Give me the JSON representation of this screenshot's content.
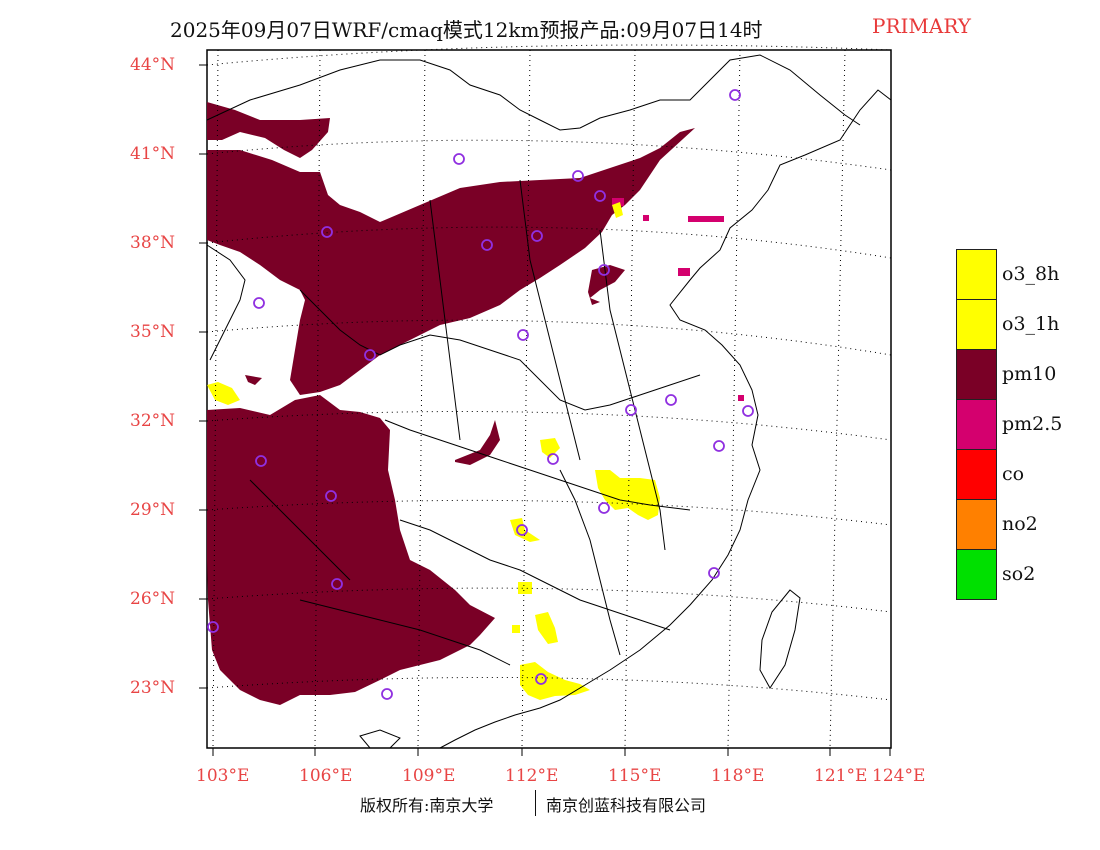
{
  "header": {
    "title": "2025年09月07日WRF/cmaq模式12km预报产品:09月07日14时",
    "primary_label": "PRIMARY",
    "primary_color": "#e83a3a"
  },
  "map": {
    "lat_labels": [
      "44°N",
      "41°N",
      "38°N",
      "35°N",
      "32°N",
      "29°N",
      "26°N",
      "23°N"
    ],
    "lon_labels": [
      "103°E",
      "106°E",
      "109°E",
      "112°E",
      "115°E",
      "118°E",
      "121°E",
      "124°E"
    ],
    "label_color": "#e84545"
  },
  "legend": {
    "items": [
      {
        "label": "o3_8h",
        "color": "#ffff00"
      },
      {
        "label": "o3_1h",
        "color": "#ffff00"
      },
      {
        "label": "pm10",
        "color": "#7a0026"
      },
      {
        "label": "pm2.5",
        "color": "#d4006e"
      },
      {
        "label": "co",
        "color": "#ff0000"
      },
      {
        "label": "no2",
        "color": "#ff8000"
      },
      {
        "label": "so2",
        "color": "#00e000"
      }
    ]
  },
  "footer": {
    "copyright": "版权所有:南京大学",
    "company": "南京创蓝科技有限公司"
  },
  "colors": {
    "pm10": "#7a0026",
    "pm25": "#d4006e",
    "o3": "#ffff00",
    "station_marker": "#9030e0",
    "boundary": "#000000"
  }
}
